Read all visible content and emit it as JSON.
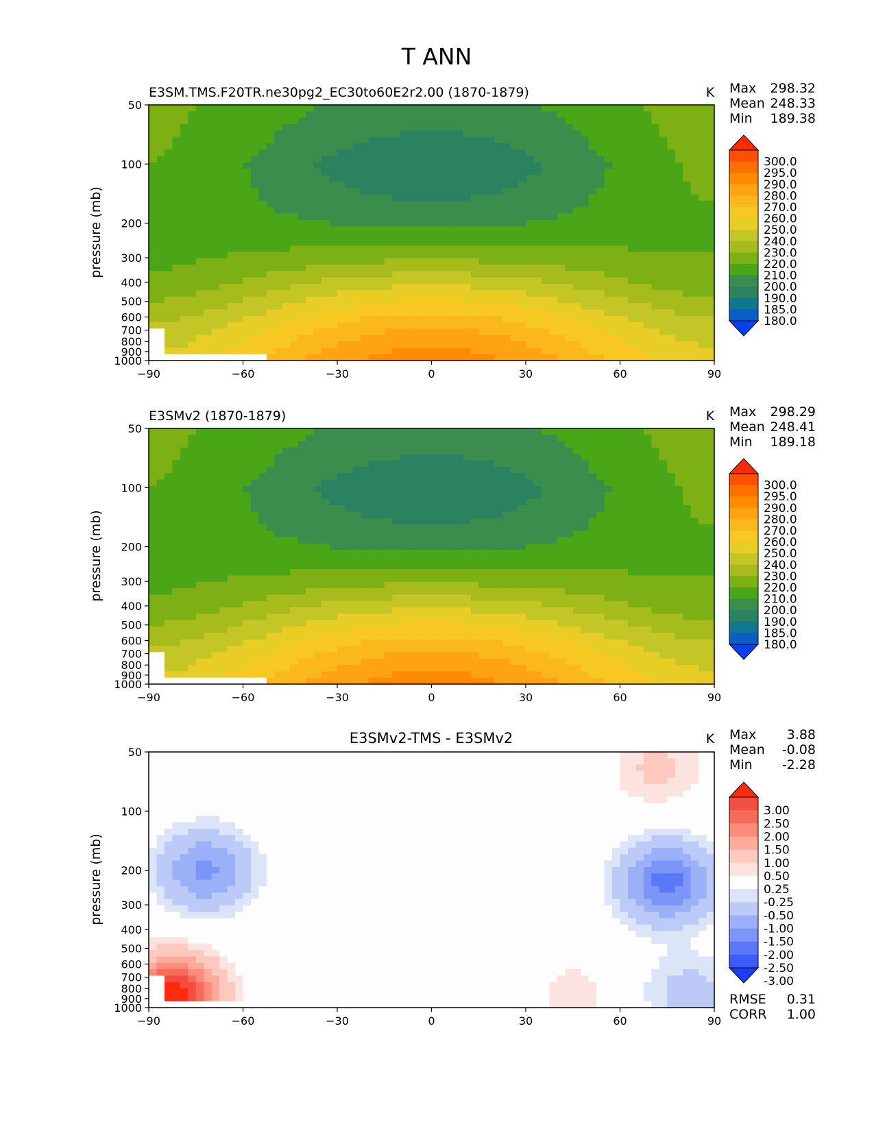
{
  "figure_title": "T ANN",
  "chart_data": [
    {
      "type": "contour",
      "title": "E3SM.TMS.F20TR.ne30pg2_EC30to60E2r2.00 (1870-1879)",
      "units": "K",
      "ylabel": "pressure (mb)",
      "xticks": [
        -90,
        -60,
        -30,
        0,
        30,
        60,
        90
      ],
      "yticks": [
        50,
        100,
        200,
        300,
        400,
        500,
        600,
        700,
        800,
        900,
        1000
      ],
      "xlim": [
        -90,
        90
      ],
      "ylim": [
        1000,
        50
      ],
      "stats": [
        {
          "label": "Max",
          "value": "298.32"
        },
        {
          "label": "Mean",
          "value": "248.33"
        },
        {
          "label": "Min",
          "value": "189.38"
        }
      ],
      "colorbar": {
        "labels": [
          "300.0",
          "295.0",
          "290.0",
          "280.0",
          "270.0",
          "260.0",
          "250.0",
          "240.0",
          "230.0",
          "220.0",
          "210.0",
          "200.0",
          "190.0",
          "185.0",
          "180.0"
        ],
        "colors": [
          "#ff2a00",
          "#ff4f00",
          "#ff6e00",
          "#ff8c00",
          "#ffa314",
          "#fbb81c",
          "#f7c822",
          "#e7cd25",
          "#c4c628",
          "#a6bc1d",
          "#7cb014",
          "#4aa517",
          "#3b8d4d",
          "#2a8260",
          "#10778f",
          "#0b5ec4",
          "#0640f5"
        ]
      },
      "zonal_field": {
        "levels": [
          50,
          100,
          200,
          300,
          400,
          500,
          600,
          700,
          800,
          900,
          1000
        ],
        "temps_eq": [
          205,
          191,
          208,
          228,
          248,
          262,
          273,
          281,
          287,
          292,
          296
        ],
        "temps_pole": [
          222,
          220,
          216,
          218,
          222,
          230,
          237,
          242,
          246,
          249,
          251
        ],
        "north_pole_factor": 1.06
      }
    },
    {
      "type": "contour",
      "title": "E3SMv2 (1870-1879)",
      "units": "K",
      "ylabel": "pressure (mb)",
      "xticks": [
        -90,
        -60,
        -30,
        0,
        30,
        60,
        90
      ],
      "yticks": [
        50,
        100,
        200,
        300,
        400,
        500,
        600,
        700,
        800,
        900,
        1000
      ],
      "xlim": [
        -90,
        90
      ],
      "ylim": [
        1000,
        50
      ],
      "stats": [
        {
          "label": "Max",
          "value": "298.29"
        },
        {
          "label": "Mean",
          "value": "248.41"
        },
        {
          "label": "Min",
          "value": "189.18"
        }
      ],
      "colorbar": {
        "labels": [
          "300.0",
          "295.0",
          "290.0",
          "280.0",
          "270.0",
          "260.0",
          "250.0",
          "240.0",
          "230.0",
          "220.0",
          "210.0",
          "200.0",
          "190.0",
          "185.0",
          "180.0"
        ],
        "colors": [
          "#ff2a00",
          "#ff4f00",
          "#ff6e00",
          "#ff8c00",
          "#ffa314",
          "#fbb81c",
          "#f7c822",
          "#e7cd25",
          "#c4c628",
          "#a6bc1d",
          "#7cb014",
          "#4aa517",
          "#3b8d4d",
          "#2a8260",
          "#10778f",
          "#0b5ec4",
          "#0640f5"
        ]
      },
      "zonal_field": {
        "levels": [
          50,
          100,
          200,
          300,
          400,
          500,
          600,
          700,
          800,
          900,
          1000
        ],
        "temps_eq": [
          205,
          191,
          208,
          228,
          248,
          262,
          273,
          281,
          287,
          292,
          296
        ],
        "temps_pole": [
          222,
          220,
          216,
          218,
          222,
          230,
          237,
          242,
          246,
          249,
          251
        ],
        "north_pole_factor": 1.06
      }
    },
    {
      "type": "contour",
      "title": "E3SMv2-TMS - E3SMv2",
      "units": "K",
      "ylabel": "pressure (mb)",
      "xticks": [
        -90,
        -60,
        -30,
        0,
        30,
        60,
        90
      ],
      "yticks": [
        50,
        100,
        200,
        300,
        400,
        500,
        600,
        700,
        800,
        900,
        1000
      ],
      "xlim": [
        -90,
        90
      ],
      "ylim": [
        1000,
        50
      ],
      "stats": [
        {
          "label": "Max",
          "value": "3.88"
        },
        {
          "label": "Mean",
          "value": "-0.08"
        },
        {
          "label": "Min",
          "value": "-2.28"
        }
      ],
      "extra_stats": [
        {
          "label": "RMSE",
          "value": "0.31"
        },
        {
          "label": "CORR",
          "value": "1.00"
        }
      ],
      "colorbar": {
        "labels": [
          "3.00",
          "2.50",
          "2.00",
          "1.50",
          "1.00",
          "0.50",
          "0.25",
          "-0.25",
          "-0.50",
          "-1.00",
          "-1.50",
          "-2.00",
          "-2.50",
          "-3.00"
        ],
        "colors": [
          "#ff2a10",
          "#f14e40",
          "#f76a5a",
          "#fb8c7c",
          "#fcaa9c",
          "#fdc9bf",
          "#fde3df",
          "#fdfdfd",
          "#dce4f8",
          "#bccaf7",
          "#9cb0f8",
          "#7c95f8",
          "#5878f8",
          "#3a5cf8",
          "#1a3df8"
        ]
      },
      "diff_features": [
        {
          "name": "cold-blob-sh-upper",
          "lat": -72,
          "p": 200,
          "value": -1.6
        },
        {
          "name": "cold-blob-nh-upper",
          "lat": 75,
          "p": 230,
          "value": -2.2
        },
        {
          "name": "cold-blob-nh-lower",
          "lat": 82,
          "p": 850,
          "value": -0.7
        },
        {
          "name": "warm-blob-nh-stratosphere",
          "lat": 72,
          "p": 60,
          "value": 0.6
        },
        {
          "name": "warm-blob-nh-lower",
          "lat": 45,
          "p": 850,
          "value": 0.35
        },
        {
          "name": "warm-spot-antarctic",
          "lat": -82,
          "p": 900,
          "value": 3.5
        }
      ]
    }
  ]
}
